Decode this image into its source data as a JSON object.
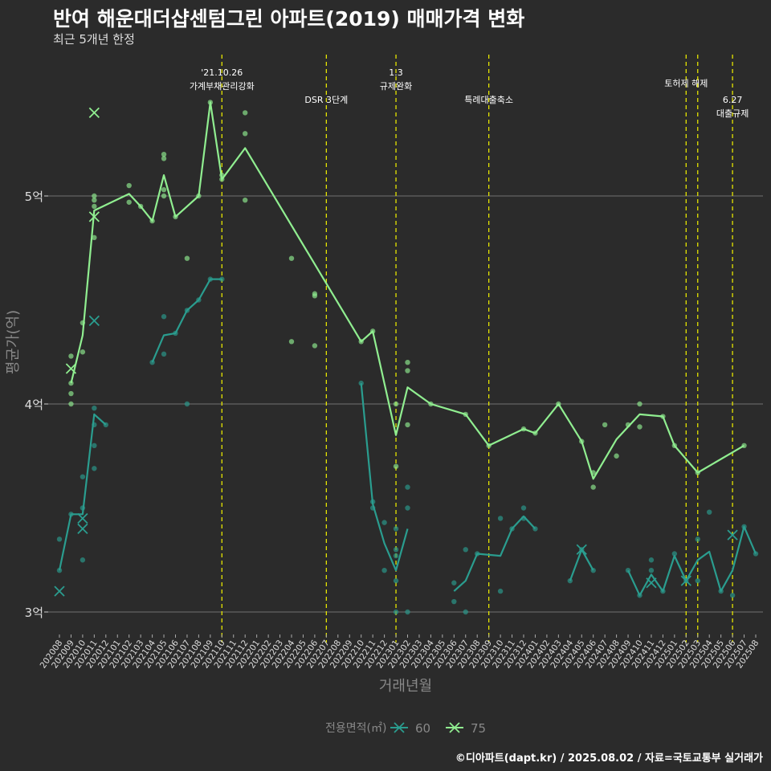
{
  "title": "반여 해운대더샵센텀그린 아파트(2019) 매매가격 변화",
  "subtitle": "최근 5개년 한정",
  "caption": "©디아파트(dapt.kr) / 2025.08.02 / 자료=국토교통부 실거래가",
  "colors": {
    "s60": "#2a9d8f",
    "s75": "#90ee90",
    "event": "#e5e500",
    "grid": "#707070",
    "text": "#ffffff"
  },
  "chart_data": {
    "type": "line",
    "xlabel": "거래년월",
    "ylabel": "평균가(억)",
    "ylim": [
      2.9,
      5.45
    ],
    "y_ticks": [
      3,
      4,
      5
    ],
    "y_tick_labels": [
      "3억",
      "4억",
      "5억"
    ],
    "x": [
      "202008",
      "202009",
      "202010",
      "202011",
      "202012",
      "202101",
      "202102",
      "202103",
      "202104",
      "202105",
      "202106",
      "202107",
      "202108",
      "202109",
      "202110",
      "202111",
      "202112",
      "202201",
      "202202",
      "202203",
      "202204",
      "202205",
      "202206",
      "202207",
      "202208",
      "202209",
      "202210",
      "202211",
      "202212",
      "202301",
      "202302",
      "202303",
      "202304",
      "202305",
      "202306",
      "202307",
      "202308",
      "202309",
      "202310",
      "202311",
      "202312",
      "202401",
      "202402",
      "202403",
      "202404",
      "202405",
      "202406",
      "202407",
      "202408",
      "202409",
      "202410",
      "202411",
      "202412",
      "202501",
      "202502",
      "202503",
      "202504",
      "202505",
      "202506",
      "202507",
      "202508"
    ],
    "legend_title": "전용면적(㎡)",
    "legend_position": "bottom",
    "grid": "horizontal",
    "series": [
      {
        "name": "60",
        "line": [
          [
            "202008",
            3.2
          ],
          [
            "202009",
            3.47
          ],
          [
            "202010",
            3.47
          ],
          [
            "202011",
            3.95
          ],
          [
            "202012",
            3.9
          ],
          null,
          [
            "202104",
            4.2
          ],
          [
            "202105",
            4.33
          ],
          [
            "202106",
            4.34
          ],
          [
            "202107",
            4.45
          ],
          [
            "202108",
            4.5
          ],
          [
            "202109",
            4.6
          ],
          [
            "202110",
            4.6
          ],
          null,
          [
            "202210",
            4.1
          ],
          [
            "202211",
            3.52
          ],
          [
            "202212",
            3.33
          ],
          [
            "202301",
            3.2
          ],
          [
            "202302",
            3.4
          ],
          null,
          [
            "202306",
            3.1
          ],
          [
            "202307",
            3.15
          ],
          [
            "202308",
            3.28
          ],
          [
            "202310",
            3.27
          ],
          [
            "202311",
            3.4
          ],
          [
            "202312",
            3.46
          ],
          [
            "202401",
            3.4
          ],
          null,
          [
            "202404",
            3.15
          ],
          [
            "202405",
            3.3
          ],
          [
            "202406",
            3.2
          ],
          null,
          [
            "202409",
            3.2
          ],
          [
            "202410",
            3.08
          ],
          [
            "202411",
            3.18
          ],
          [
            "202412",
            3.1
          ],
          [
            "202501",
            3.27
          ],
          [
            "202502",
            3.15
          ],
          [
            "202503",
            3.25
          ],
          [
            "202504",
            3.29
          ],
          [
            "202505",
            3.1
          ],
          [
            "202506",
            3.2
          ],
          [
            "202507",
            3.41
          ],
          [
            "202508",
            3.28
          ]
        ],
        "points": [
          [
            "202008",
            3.35
          ],
          [
            "202008",
            3.2
          ],
          [
            "202009",
            3.47
          ],
          [
            "202010",
            3.65
          ],
          [
            "202010",
            3.5
          ],
          [
            "202010",
            3.25
          ],
          [
            "202011",
            3.98
          ],
          [
            "202011",
            3.9
          ],
          [
            "202011",
            3.8
          ],
          [
            "202011",
            3.69
          ],
          [
            "202012",
            3.9
          ],
          [
            "202104",
            4.2
          ],
          [
            "202105",
            4.42
          ],
          [
            "202105",
            4.24
          ],
          [
            "202106",
            4.34
          ],
          [
            "202107",
            4.45
          ],
          [
            "202107",
            4.0
          ],
          [
            "202108",
            4.5
          ],
          [
            "202109",
            4.6
          ],
          [
            "202110",
            4.6
          ],
          [
            "202210",
            4.1
          ],
          [
            "202211",
            3.53
          ],
          [
            "202211",
            3.5
          ],
          [
            "202212",
            3.43
          ],
          [
            "202212",
            3.2
          ],
          [
            "202301",
            3.4
          ],
          [
            "202301",
            3.3
          ],
          [
            "202301",
            3.27
          ],
          [
            "202301",
            3.15
          ],
          [
            "202301",
            3.0
          ],
          [
            "202302",
            3.6
          ],
          [
            "202302",
            3.5
          ],
          [
            "202302",
            3.0
          ],
          [
            "202306",
            3.14
          ],
          [
            "202306",
            3.05
          ],
          [
            "202307",
            3.3
          ],
          [
            "202307",
            3.0
          ],
          [
            "202308",
            3.28
          ],
          [
            "202310",
            3.45
          ],
          [
            "202310",
            3.1
          ],
          [
            "202311",
            3.4
          ],
          [
            "202312",
            3.5
          ],
          [
            "202312",
            3.45
          ],
          [
            "202401",
            3.4
          ],
          [
            "202404",
            3.15
          ],
          [
            "202405",
            3.3
          ],
          [
            "202406",
            3.2
          ],
          [
            "202409",
            3.2
          ],
          [
            "202410",
            3.08
          ],
          [
            "202411",
            3.25
          ],
          [
            "202411",
            3.2
          ],
          [
            "202412",
            3.1
          ],
          [
            "202501",
            3.28
          ],
          [
            "202502",
            3.15
          ],
          [
            "202503",
            3.35
          ],
          [
            "202503",
            3.15
          ],
          [
            "202504",
            3.48
          ],
          [
            "202505",
            3.1
          ],
          [
            "202506",
            3.08
          ],
          [
            "202507",
            3.41
          ],
          [
            "202508",
            3.28
          ]
        ],
        "cancelled": [
          [
            "202008",
            3.1
          ],
          [
            "202010",
            3.45
          ],
          [
            "202010",
            3.4
          ],
          [
            "202011",
            4.4
          ],
          [
            "202405",
            3.3
          ],
          [
            "202411",
            3.14
          ],
          [
            "202502",
            3.15
          ],
          [
            "202506",
            3.37
          ]
        ]
      },
      {
        "name": "75",
        "line": [
          [
            "202009",
            4.1
          ],
          [
            "202010",
            4.33
          ],
          [
            "202011",
            4.93
          ],
          [
            "202102",
            5.01
          ],
          [
            "202103",
            4.95
          ],
          [
            "202104",
            4.88
          ],
          [
            "202105",
            5.1
          ],
          [
            "202106",
            4.9
          ],
          [
            "202108",
            5.0
          ],
          [
            "202109",
            5.45
          ],
          [
            "202110",
            5.08
          ],
          [
            "202112",
            5.23
          ],
          [
            "202210",
            4.3
          ],
          [
            "202211",
            4.35
          ],
          [
            "202301",
            3.85
          ],
          [
            "202302",
            4.08
          ],
          [
            "202304",
            4.0
          ],
          [
            "202307",
            3.95
          ],
          [
            "202309",
            3.8
          ],
          [
            "202312",
            3.88
          ],
          [
            "202401",
            3.86
          ],
          [
            "202403",
            4.0
          ],
          [
            "202405",
            3.82
          ],
          [
            "202406",
            3.64
          ],
          [
            "202408",
            3.83
          ],
          [
            "202410",
            3.95
          ],
          [
            "202412",
            3.94
          ],
          [
            "202501",
            3.8
          ],
          [
            "202503",
            3.67
          ],
          [
            "202507",
            3.8
          ]
        ],
        "points": [
          [
            "202009",
            4.23
          ],
          [
            "202009",
            4.1
          ],
          [
            "202009",
            4.05
          ],
          [
            "202009",
            4.0
          ],
          [
            "202010",
            4.39
          ],
          [
            "202010",
            4.25
          ],
          [
            "202011",
            5.0
          ],
          [
            "202011",
            4.98
          ],
          [
            "202011",
            4.95
          ],
          [
            "202011",
            4.8
          ],
          [
            "202102",
            5.05
          ],
          [
            "202102",
            4.97
          ],
          [
            "202103",
            4.95
          ],
          [
            "202104",
            4.88
          ],
          [
            "202105",
            5.2
          ],
          [
            "202105",
            5.18
          ],
          [
            "202105",
            5.03
          ],
          [
            "202105",
            5.0
          ],
          [
            "202106",
            4.9
          ],
          [
            "202107",
            4.7
          ],
          [
            "202108",
            5.0
          ],
          [
            "202109",
            5.45
          ],
          [
            "202110",
            5.1
          ],
          [
            "202110",
            5.08
          ],
          [
            "202112",
            5.4
          ],
          [
            "202112",
            5.3
          ],
          [
            "202112",
            4.98
          ],
          [
            "202204",
            4.7
          ],
          [
            "202204",
            4.3
          ],
          [
            "202206",
            4.53
          ],
          [
            "202206",
            4.52
          ],
          [
            "202206",
            4.28
          ],
          [
            "202210",
            4.3
          ],
          [
            "202211",
            4.35
          ],
          [
            "202301",
            4.0
          ],
          [
            "202301",
            3.7
          ],
          [
            "202302",
            4.2
          ],
          [
            "202302",
            4.16
          ],
          [
            "202302",
            3.9
          ],
          [
            "202304",
            4.0
          ],
          [
            "202307",
            3.95
          ],
          [
            "202309",
            3.8
          ],
          [
            "202312",
            3.88
          ],
          [
            "202401",
            3.86
          ],
          [
            "202403",
            4.0
          ],
          [
            "202405",
            3.82
          ],
          [
            "202406",
            3.67
          ],
          [
            "202406",
            3.6
          ],
          [
            "202407",
            3.9
          ],
          [
            "202408",
            3.75
          ],
          [
            "202409",
            3.9
          ],
          [
            "202410",
            4.0
          ],
          [
            "202410",
            3.89
          ],
          [
            "202412",
            3.94
          ],
          [
            "202501",
            3.8
          ],
          [
            "202503",
            3.67
          ],
          [
            "202507",
            3.8
          ]
        ],
        "cancelled": [
          [
            "202009",
            4.17
          ],
          [
            "202011",
            5.4
          ],
          [
            "202011",
            4.9
          ]
        ]
      }
    ],
    "events": [
      {
        "x": "202110",
        "label_lines": [
          "'21.10.26",
          "가계부채관리강화"
        ],
        "row": 0
      },
      {
        "x": "202207",
        "label_lines": [
          "DSR 3단계"
        ],
        "row": 1
      },
      {
        "x": "202301",
        "label_lines": [
          "1.3",
          "규제완화"
        ],
        "row": 0
      },
      {
        "x": "202309",
        "label_lines": [
          "특례대출축소"
        ],
        "row": 1
      },
      {
        "x": "202502",
        "label_lines": [
          "토허제 해제"
        ],
        "row": 0.4
      },
      {
        "x": "202503",
        "label_lines": [],
        "row": 0
      },
      {
        "x": "202506",
        "label_lines": [
          "6.27",
          "대출규제"
        ],
        "row": 1
      }
    ]
  }
}
